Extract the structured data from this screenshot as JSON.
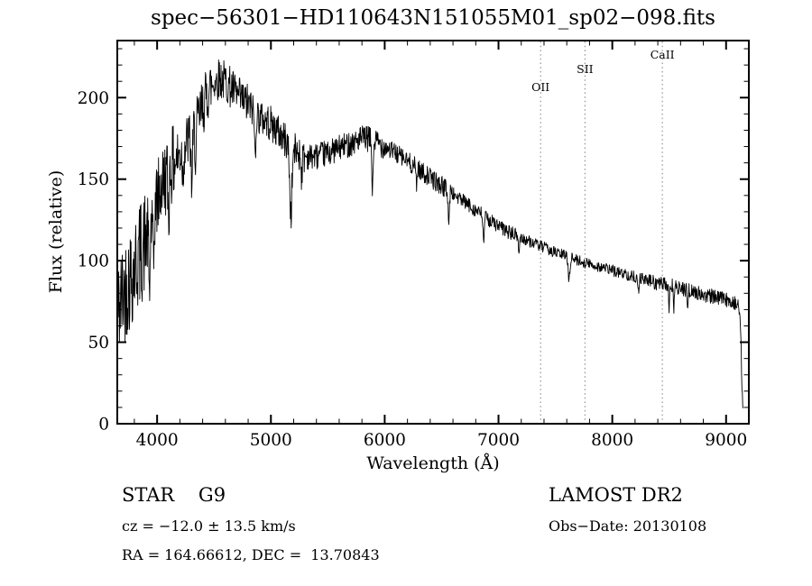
{
  "chart_data": {
    "type": "line",
    "title": "spec−56301−HD110643N151055M01_sp02−098.fits",
    "xlabel": "Wavelength (Å)",
    "ylabel": "Flux (relative)",
    "xlim": [
      3650,
      9200
    ],
    "ylim": [
      0,
      235
    ],
    "xticks": [
      4000,
      5000,
      6000,
      7000,
      8000,
      9000
    ],
    "xtick_minor_step": 200,
    "yticks": [
      0,
      50,
      100,
      150,
      200
    ],
    "ytick_minor_step": 10,
    "line_color": "#000000",
    "marked_line_color": "#8a8a8a",
    "marked_lines": [
      {
        "label": "OII",
        "wavelength": 7370,
        "label_flux": 204
      },
      {
        "label": "SII",
        "wavelength": 7760,
        "label_flux": 215
      },
      {
        "label": "CaII",
        "wavelength": 8440,
        "label_flux": 224
      }
    ],
    "envelope": [
      [
        3655,
        68
      ],
      [
        3700,
        80
      ],
      [
        3750,
        88
      ],
      [
        3800,
        96
      ],
      [
        3850,
        104
      ],
      [
        3900,
        112
      ],
      [
        3950,
        122
      ],
      [
        4000,
        138
      ],
      [
        4050,
        148
      ],
      [
        4100,
        155
      ],
      [
        4150,
        160
      ],
      [
        4200,
        165
      ],
      [
        4250,
        171
      ],
      [
        4300,
        177
      ],
      [
        4350,
        184
      ],
      [
        4400,
        194
      ],
      [
        4450,
        204
      ],
      [
        4500,
        210
      ],
      [
        4550,
        212
      ],
      [
        4600,
        210
      ],
      [
        4650,
        206
      ],
      [
        4700,
        201
      ],
      [
        4750,
        198
      ],
      [
        4800,
        196
      ],
      [
        4850,
        192
      ],
      [
        4900,
        188
      ],
      [
        4950,
        186
      ],
      [
        5000,
        184
      ],
      [
        5100,
        176
      ],
      [
        5200,
        168
      ],
      [
        5300,
        164
      ],
      [
        5400,
        164
      ],
      [
        5500,
        166
      ],
      [
        5600,
        169
      ],
      [
        5700,
        172
      ],
      [
        5800,
        175
      ],
      [
        5900,
        174
      ],
      [
        6000,
        170
      ],
      [
        6100,
        166
      ],
      [
        6200,
        161
      ],
      [
        6300,
        156
      ],
      [
        6400,
        151
      ],
      [
        6500,
        146
      ],
      [
        6600,
        141
      ],
      [
        6700,
        136
      ],
      [
        6800,
        131
      ],
      [
        6900,
        126
      ],
      [
        7000,
        121
      ],
      [
        7100,
        117
      ],
      [
        7200,
        114
      ],
      [
        7300,
        111
      ],
      [
        7400,
        108
      ],
      [
        7500,
        105
      ],
      [
        7600,
        103
      ],
      [
        7700,
        100
      ],
      [
        7800,
        98
      ],
      [
        7900,
        96
      ],
      [
        8000,
        94
      ],
      [
        8100,
        92
      ],
      [
        8200,
        90
      ],
      [
        8300,
        88
      ],
      [
        8400,
        86
      ],
      [
        8500,
        85
      ],
      [
        8600,
        83
      ],
      [
        8700,
        81
      ],
      [
        8800,
        79
      ],
      [
        8900,
        78
      ],
      [
        9000,
        76
      ],
      [
        9060,
        75
      ],
      [
        9100,
        73
      ],
      [
        9125,
        65
      ],
      [
        9138,
        28
      ],
      [
        9148,
        3
      ]
    ],
    "absorption_dips": [
      [
        3933,
        38,
        8
      ],
      [
        3968,
        32,
        8
      ],
      [
        4101,
        26,
        8
      ],
      [
        4227,
        18,
        6
      ],
      [
        4305,
        30,
        10
      ],
      [
        4340,
        20,
        7
      ],
      [
        4861,
        26,
        8
      ],
      [
        5175,
        42,
        14
      ],
      [
        5270,
        12,
        8
      ],
      [
        5893,
        32,
        8
      ],
      [
        6280,
        12,
        5
      ],
      [
        6563,
        22,
        7
      ],
      [
        6870,
        14,
        9
      ],
      [
        7180,
        10,
        7
      ],
      [
        7620,
        14,
        10
      ],
      [
        8230,
        8,
        7
      ],
      [
        8498,
        18,
        5
      ],
      [
        8542,
        14,
        5
      ],
      [
        8662,
        10,
        5
      ]
    ],
    "noise_regions": [
      [
        3650,
        3900,
        33
      ],
      [
        3900,
        4150,
        24
      ],
      [
        4150,
        4500,
        18
      ],
      [
        4500,
        4800,
        13
      ],
      [
        4800,
        5300,
        11
      ],
      [
        5300,
        6000,
        8
      ],
      [
        6000,
        6600,
        6
      ],
      [
        6600,
        7200,
        4.5
      ],
      [
        7200,
        8300,
        3.5
      ],
      [
        8300,
        9200,
        4.5
      ]
    ],
    "sample_step": 3.5,
    "noise_seed": 42
  },
  "annotations": {
    "star_class": "STAR    G9",
    "survey": "LAMOST DR2",
    "cz": "cz = −12.0 ± 13.5 km/s",
    "obs_date": "Obs−Date: 20130108",
    "ra_dec": "RA = 164.66612, DEC =  13.70843"
  }
}
